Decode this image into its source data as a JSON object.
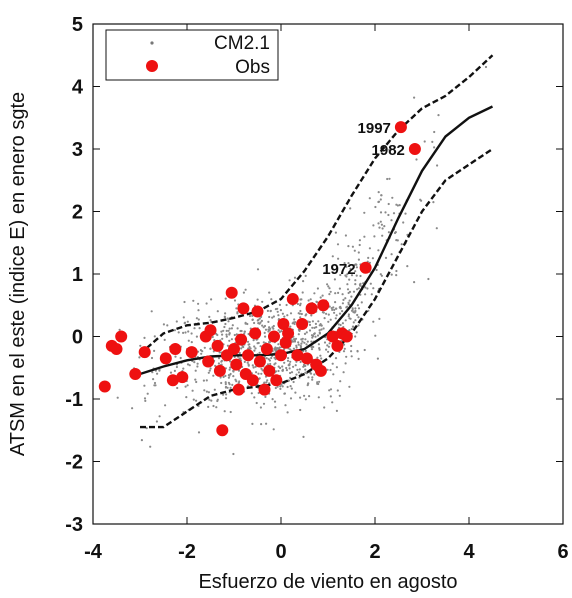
{
  "chart_data": {
    "type": "scatter",
    "xlabel": "Esfuerzo de viento en agosto",
    "ylabel": "ATSM en el este (indice E) en enero sgte",
    "xlim": [
      -4,
      6
    ],
    "ylim": [
      -3,
      5
    ],
    "xticks": [
      -4,
      -2,
      0,
      2,
      4,
      6
    ],
    "yticks": [
      -3,
      -2,
      -1,
      0,
      1,
      2,
      3,
      4,
      5
    ],
    "grid": false,
    "legend": {
      "position": "top-left",
      "entries": [
        "CM2.1",
        "Obs"
      ]
    },
    "colors": {
      "obs": "#ee1111",
      "model": "#999999",
      "curves": "#111111"
    },
    "series": [
      {
        "name": "CM2.1",
        "kind": "scatter-cloud",
        "marker": "small gray dot",
        "approx_points": 1100,
        "x_range": [
          -3.7,
          4.6
        ],
        "y_range": [
          -2.1,
          4.6
        ]
      },
      {
        "name": "Obs",
        "kind": "scatter",
        "points": [
          {
            "x": -3.75,
            "y": -0.8
          },
          {
            "x": -3.6,
            "y": -0.15
          },
          {
            "x": -3.4,
            "y": 0.0
          },
          {
            "x": -3.5,
            "y": -0.2
          },
          {
            "x": -3.1,
            "y": -0.6
          },
          {
            "x": -2.9,
            "y": -0.25
          },
          {
            "x": -2.45,
            "y": -0.35
          },
          {
            "x": -2.3,
            "y": -0.7
          },
          {
            "x": -2.25,
            "y": -0.2
          },
          {
            "x": -2.1,
            "y": -0.65
          },
          {
            "x": -1.9,
            "y": -0.25
          },
          {
            "x": -1.6,
            "y": 0.0
          },
          {
            "x": -1.55,
            "y": -0.4
          },
          {
            "x": -1.5,
            "y": 0.1
          },
          {
            "x": -1.35,
            "y": -0.15
          },
          {
            "x": -1.3,
            "y": -0.55
          },
          {
            "x": -1.25,
            "y": -1.5
          },
          {
            "x": -1.15,
            "y": -0.3
          },
          {
            "x": -1.05,
            "y": 0.7
          },
          {
            "x": -1.0,
            "y": -0.2
          },
          {
            "x": -0.95,
            "y": -0.45
          },
          {
            "x": -0.9,
            "y": -0.85
          },
          {
            "x": -0.85,
            "y": -0.05
          },
          {
            "x": -0.8,
            "y": 0.45
          },
          {
            "x": -0.75,
            "y": -0.6
          },
          {
            "x": -0.7,
            "y": -0.3
          },
          {
            "x": -0.6,
            "y": -0.7
          },
          {
            "x": -0.55,
            "y": 0.05
          },
          {
            "x": -0.5,
            "y": 0.4
          },
          {
            "x": -0.45,
            "y": -0.4
          },
          {
            "x": -0.35,
            "y": -0.85
          },
          {
            "x": -0.3,
            "y": -0.2
          },
          {
            "x": -0.25,
            "y": -0.55
          },
          {
            "x": -0.15,
            "y": 0.0
          },
          {
            "x": -0.1,
            "y": -0.7
          },
          {
            "x": 0.0,
            "y": -0.3
          },
          {
            "x": 0.05,
            "y": 0.2
          },
          {
            "x": 0.1,
            "y": -0.1
          },
          {
            "x": 0.15,
            "y": 0.05
          },
          {
            "x": 0.25,
            "y": 0.6
          },
          {
            "x": 0.35,
            "y": -0.3
          },
          {
            "x": 0.45,
            "y": 0.2
          },
          {
            "x": 0.55,
            "y": -0.35
          },
          {
            "x": 0.65,
            "y": 0.45
          },
          {
            "x": 0.75,
            "y": -0.45
          },
          {
            "x": 0.85,
            "y": -0.55
          },
          {
            "x": 0.9,
            "y": 0.5
          },
          {
            "x": 1.1,
            "y": 0.0
          },
          {
            "x": 1.2,
            "y": -0.15
          },
          {
            "x": 1.3,
            "y": 0.05
          },
          {
            "x": 1.4,
            "y": 0.0
          },
          {
            "x": 1.8,
            "y": 1.1
          },
          {
            "x": 2.55,
            "y": 3.35
          },
          {
            "x": 2.85,
            "y": 3.0
          }
        ]
      },
      {
        "kind": "curve",
        "style": "solid",
        "points": [
          [
            -3.0,
            -0.6
          ],
          [
            -2.5,
            -0.48
          ],
          [
            -2.0,
            -0.38
          ],
          [
            -1.5,
            -0.32
          ],
          [
            -1.0,
            -0.3
          ],
          [
            -0.5,
            -0.3
          ],
          [
            0.0,
            -0.28
          ],
          [
            0.5,
            -0.2
          ],
          [
            1.0,
            0.05
          ],
          [
            1.5,
            0.5
          ],
          [
            2.0,
            1.1
          ],
          [
            2.5,
            1.9
          ],
          [
            3.0,
            2.65
          ],
          [
            3.5,
            3.2
          ],
          [
            4.0,
            3.5
          ],
          [
            4.5,
            3.68
          ]
        ]
      },
      {
        "kind": "curve",
        "style": "dashed",
        "points": [
          [
            -3.0,
            -0.28
          ],
          [
            -2.5,
            0.05
          ],
          [
            -2.0,
            0.18
          ],
          [
            -1.5,
            0.22
          ],
          [
            -1.0,
            0.3
          ],
          [
            -0.5,
            0.4
          ],
          [
            0.0,
            0.6
          ],
          [
            0.5,
            1.05
          ],
          [
            1.0,
            1.6
          ],
          [
            1.5,
            2.25
          ],
          [
            2.0,
            2.85
          ],
          [
            2.5,
            3.3
          ],
          [
            3.0,
            3.65
          ],
          [
            3.5,
            3.85
          ],
          [
            4.0,
            4.15
          ],
          [
            4.5,
            4.5
          ]
        ]
      },
      {
        "kind": "curve",
        "style": "dashed",
        "points": [
          [
            -3.0,
            -1.45
          ],
          [
            -2.5,
            -1.45
          ],
          [
            -2.0,
            -1.2
          ],
          [
            -1.5,
            -0.95
          ],
          [
            -1.0,
            -0.85
          ],
          [
            -0.5,
            -0.8
          ],
          [
            0.0,
            -0.75
          ],
          [
            0.5,
            -0.6
          ],
          [
            1.0,
            -0.35
          ],
          [
            1.5,
            0.05
          ],
          [
            2.0,
            0.6
          ],
          [
            2.5,
            1.3
          ],
          [
            3.0,
            2.0
          ],
          [
            3.5,
            2.5
          ],
          [
            4.0,
            2.75
          ],
          [
            4.5,
            3.0
          ]
        ]
      }
    ],
    "annotations": [
      {
        "text": "1997",
        "x": 2.55,
        "y": 3.35
      },
      {
        "text": "1982",
        "x": 2.85,
        "y": 3.0
      },
      {
        "text": "1972",
        "x": 1.8,
        "y": 1.1
      }
    ]
  }
}
